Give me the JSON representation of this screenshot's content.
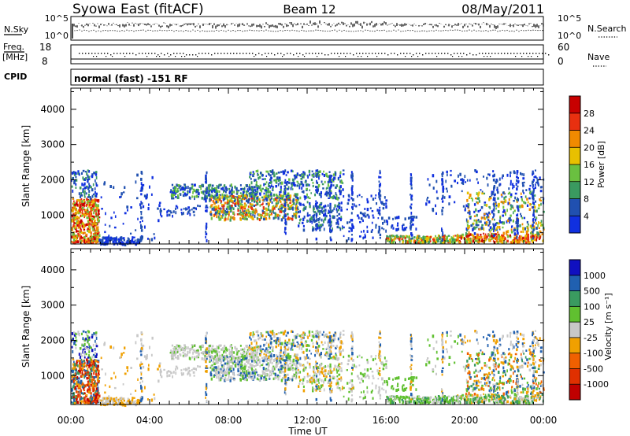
{
  "header": {
    "station": "Syowa East (fitACF)",
    "beam": "Beam 12",
    "date": "08/May/2011"
  },
  "strips": {
    "nsky": {
      "label": "N.Sky",
      "right_label": "N.Search",
      "left_ticks": [
        "10^5",
        "10^0"
      ],
      "right_ticks": [
        "10^5",
        "10^0"
      ]
    },
    "freq": {
      "label": "Freq.",
      "unit": "[MHz]",
      "left_ticks": [
        "18",
        "8"
      ],
      "right_label": "Nave",
      "right_ticks": [
        "60",
        "0"
      ]
    },
    "cpid": {
      "label": "CPID",
      "value": "normal (fast) -151 RF"
    }
  },
  "colors": {
    "power": [
      "#1030e0",
      "#2050b0",
      "#3a9a60",
      "#6ac040",
      "#e8c000",
      "#f08a00",
      "#e83010",
      "#c80000"
    ],
    "velocity": [
      "#1010c0",
      "#2060b0",
      "#3a9a60",
      "#60c030",
      "#c8c8c8",
      "#f0a000",
      "#f06000",
      "#e03000",
      "#c00000"
    ]
  },
  "chart_data": [
    {
      "type": "heatmap",
      "name": "Power",
      "ylabel": "Slant Range [km]",
      "ylim": [
        180,
        4600
      ],
      "yticks": [
        1000,
        2000,
        3000,
        4000
      ],
      "xlim_hours": [
        0,
        24
      ],
      "xticks": [
        "00:00",
        "04:00",
        "08:00",
        "12:00",
        "16:00",
        "20:00",
        "00:00"
      ],
      "colorbar": {
        "label": "Power [dB]",
        "range": [
          0,
          32
        ],
        "ticks": [
          "4",
          "8",
          "12",
          "16",
          "20",
          "24",
          "28"
        ]
      }
    },
    {
      "type": "heatmap",
      "name": "Velocity",
      "ylabel": "Slant Range [km]",
      "ylim": [
        180,
        4600
      ],
      "yticks": [
        1000,
        2000,
        3000,
        4000
      ],
      "xlabel": "Time UT",
      "xlim_hours": [
        0,
        24
      ],
      "xticks": [
        "00:00",
        "04:00",
        "08:00",
        "12:00",
        "16:00",
        "20:00",
        "00:00"
      ],
      "colorbar": {
        "label": "Velocity [m s⁻¹]",
        "ticks": [
          "1000",
          "500",
          "100",
          "25",
          "-25",
          "-100",
          "-500",
          "-1000"
        ]
      }
    }
  ]
}
